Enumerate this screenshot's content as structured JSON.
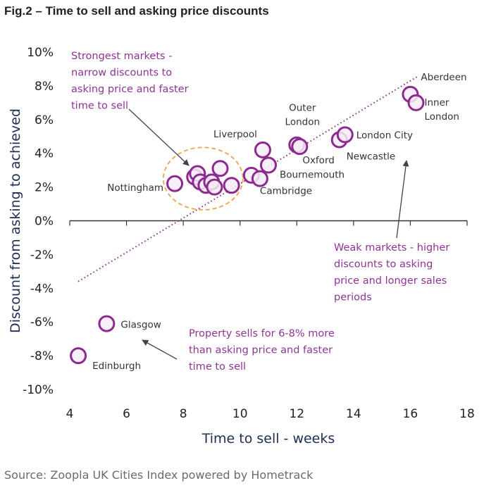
{
  "title": "Fig.2 – Time to sell and asking price discounts",
  "source": "Source: Zoopla UK Cities Index powered by Hometrack",
  "colors": {
    "marker_stroke": "#8b2a8f",
    "marker_fill": "#f5ecf6",
    "annotation_text": "#8e3594",
    "highlight_ellipse": "#f0a24a",
    "axis_title": "#1f2d54",
    "arrow": "#3d4350"
  },
  "chart_data": {
    "type": "scatter",
    "xlabel": "Time to sell - weeks",
    "ylabel": "Discount from asking to achieved",
    "xlim": [
      4,
      18
    ],
    "ylim": [
      -10,
      10
    ],
    "x_ticks": [
      4,
      6,
      8,
      10,
      12,
      14,
      16,
      18
    ],
    "y_ticks": [
      10,
      8,
      6,
      4,
      2,
      0,
      -2,
      -4,
      -6,
      -8,
      -10
    ],
    "x_tick_labels": [
      "4",
      "6",
      "8",
      "10",
      "12",
      "14",
      "16",
      "18"
    ],
    "y_tick_labels": [
      "10%",
      "8%",
      "6%",
      "4%",
      "2%",
      "0%",
      "-2%",
      "-4%",
      "-6%",
      "-8%",
      "-10%"
    ],
    "grid": false,
    "points": [
      {
        "x": 4.3,
        "y": -8.0,
        "label": "Edinburgh"
      },
      {
        "x": 5.3,
        "y": -6.1,
        "label": "Glasgow"
      },
      {
        "x": 7.7,
        "y": 2.2,
        "label": "Nottingham"
      },
      {
        "x": 8.4,
        "y": 2.6,
        "label": ""
      },
      {
        "x": 8.5,
        "y": 2.8,
        "label": ""
      },
      {
        "x": 8.6,
        "y": 2.3,
        "label": ""
      },
      {
        "x": 8.8,
        "y": 2.1,
        "label": ""
      },
      {
        "x": 9.0,
        "y": 2.3,
        "label": ""
      },
      {
        "x": 9.1,
        "y": 2.0,
        "label": ""
      },
      {
        "x": 9.3,
        "y": 3.1,
        "label": ""
      },
      {
        "x": 9.7,
        "y": 2.1,
        "label": ""
      },
      {
        "x": 10.4,
        "y": 2.7,
        "label": ""
      },
      {
        "x": 10.7,
        "y": 2.5,
        "label": "Cambridge"
      },
      {
        "x": 10.8,
        "y": 4.2,
        "label": "Liverpool"
      },
      {
        "x": 11.0,
        "y": 3.3,
        "label": "Bournemouth"
      },
      {
        "x": 12.0,
        "y": 4.5,
        "label": "Outer London"
      },
      {
        "x": 12.1,
        "y": 4.4,
        "label": "Oxford"
      },
      {
        "x": 13.5,
        "y": 4.8,
        "label": "Newcastle"
      },
      {
        "x": 13.7,
        "y": 5.1,
        "label": "London City"
      },
      {
        "x": 16.0,
        "y": 7.5,
        "label": "Aberdeen"
      },
      {
        "x": 16.2,
        "y": 7.0,
        "label": "Inner London"
      }
    ],
    "trendline": {
      "x": [
        4.3,
        16.3
      ],
      "y": [
        -3.6,
        8.6
      ],
      "style": "dotted"
    },
    "highlight": {
      "cx": 8.7,
      "cy": 2.5,
      "rx": 1.4,
      "ry": 1.85
    },
    "annotations": [
      {
        "lines": [
          "Strongest markets -",
          "narrow discounts to",
          "asking price and faster",
          "time to sell"
        ]
      },
      {
        "lines": [
          "Weak markets - higher",
          "discounts to asking",
          "price and longer sales",
          "periods"
        ]
      },
      {
        "lines": [
          "Property sells for 6-8% more",
          "than asking price and faster",
          "time to sell"
        ]
      }
    ]
  }
}
